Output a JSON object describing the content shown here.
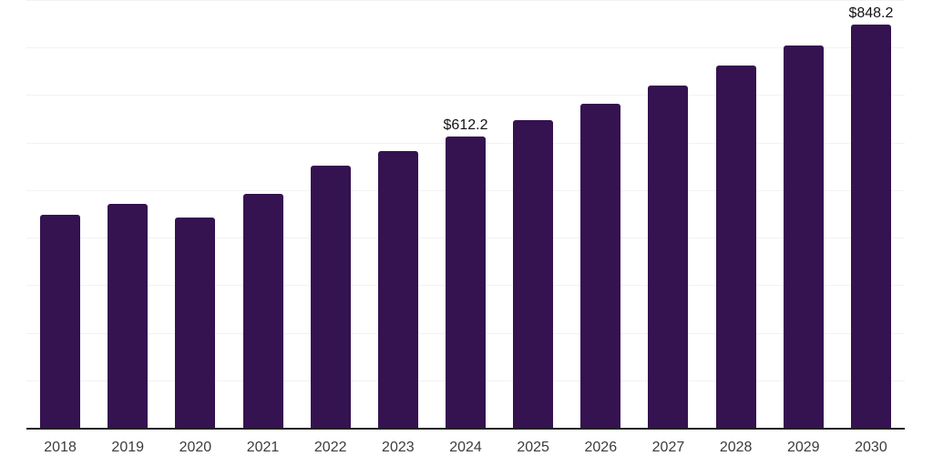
{
  "chart_data": {
    "type": "bar",
    "title": "",
    "xlabel": "",
    "ylabel": "",
    "categories": [
      "2018",
      "2019",
      "2020",
      "2021",
      "2022",
      "2023",
      "2024",
      "2025",
      "2026",
      "2027",
      "2028",
      "2029",
      "2030"
    ],
    "values": [
      448,
      471,
      442,
      492,
      551,
      582,
      612.2,
      647,
      682,
      720,
      763,
      805,
      848.2
    ],
    "data_labels": [
      {
        "category": "2024",
        "text": "$612.2"
      },
      {
        "category": "2030",
        "text": "$848.2"
      }
    ],
    "ylim": [
      0,
      900
    ],
    "gridline_step": 100,
    "grid": "horizontal-only",
    "legend_position": "none",
    "y_tick_labels_visible": false,
    "bar_color": "#351250",
    "gridline_color": "#f2f2f2",
    "axis_line_color": "#222222",
    "tick_label_color": "#3c3c3c",
    "value_label_color": "#121212",
    "background_color": "#ffffff"
  }
}
